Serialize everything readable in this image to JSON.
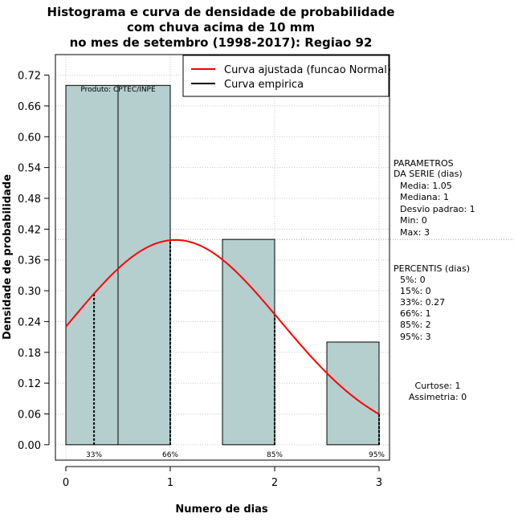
{
  "chart_data": {
    "type": "bar",
    "title": [
      "Histograma e curva de densidade de probabilidade",
      "com chuva acima de 10 mm",
      "no mes de setembro (1998-2017): Regiao 92"
    ],
    "xlabel": "Numero de dias",
    "ylabel": "Densidade de probabilidade",
    "xlim": [
      -0.1,
      3.1
    ],
    "ylim": [
      -0.03,
      0.76
    ],
    "xticks": [
      0,
      1,
      2,
      3
    ],
    "yticks": [
      0.0,
      0.06,
      0.12,
      0.18,
      0.24,
      0.3,
      0.36,
      0.42,
      0.48,
      0.54,
      0.6,
      0.66,
      0.72
    ],
    "ytick_labels": [
      "0.00",
      "0.06",
      "0.12",
      "0.18",
      "0.24",
      "0.30",
      "0.36",
      "0.42",
      "0.48",
      "0.54",
      "0.60",
      "0.66",
      "0.72"
    ],
    "bars": [
      {
        "x0": 0.0,
        "x1": 0.5,
        "density": 0.7
      },
      {
        "x0": 0.5,
        "x1": 1.0,
        "density": 0.7
      },
      {
        "x0": 1.5,
        "x1": 2.0,
        "density": 0.4
      },
      {
        "x0": 2.5,
        "x1": 3.0,
        "density": 0.2
      }
    ],
    "bar_color": "#b5cece",
    "fitted_curve": {
      "name": "Curva ajustada (funcao Normal)",
      "color": "#ff0000",
      "mean": 1.05,
      "sd": 1.0,
      "x_range": [
        0,
        3
      ]
    },
    "empirical_curve": {
      "name": "Curva empirica",
      "color": "#000000"
    },
    "hline": 0.4,
    "grid": true,
    "legend_position": "top-right",
    "percentile_marks": [
      {
        "x": 0.27,
        "label": "33%"
      },
      {
        "x": 1.0,
        "label": "66%"
      },
      {
        "x": 2.0,
        "label": "85%"
      },
      {
        "x": 3.0,
        "label": "95%"
      }
    ],
    "annotations": {
      "product": "Produto: CPTEC/INPE",
      "parametros_title": [
        "PARAMETROS",
        "DA SERIE (dias)"
      ],
      "parametros": [
        "Media: 1.05",
        "Mediana: 1",
        "Desvio padrao: 1",
        "Min: 0",
        "Max: 3"
      ],
      "percentis_title": "PERCENTIS (dias)",
      "percentis": [
        "5%: 0",
        "15%: 0",
        "33%: 0.27",
        "66%: 1",
        "85%: 2",
        "95%: 3"
      ],
      "stats": [
        "Curtose: 1",
        "Assimetria: 0"
      ]
    }
  }
}
